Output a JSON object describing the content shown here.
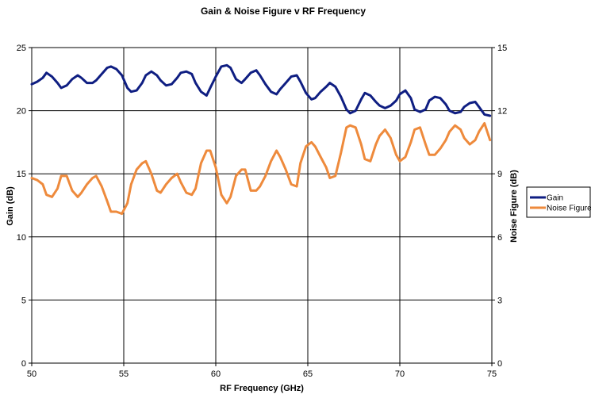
{
  "chart_data": {
    "type": "line",
    "title": "Gain & Noise Figure v RF Frequency",
    "xlabel": "RF Frequency (GHz)",
    "ylabel": "Gain (dB)",
    "y2label": "Noise Figure (dB)",
    "xlim": [
      50,
      75
    ],
    "ylim": [
      0,
      25
    ],
    "y2lim": [
      0,
      15
    ],
    "xticks": [
      "50",
      "55",
      "60",
      "65",
      "70",
      "75"
    ],
    "yticks": [
      "0",
      "5",
      "10",
      "15",
      "20",
      "25"
    ],
    "y2ticks": [
      "0",
      "3",
      "6",
      "9",
      "12",
      "15"
    ],
    "grid": true,
    "legend_position": "right",
    "series": [
      {
        "name": "Gain",
        "axis": "left",
        "color": "#0f1e82",
        "points": [
          [
            50,
            22.1
          ],
          [
            50.3,
            22.3
          ],
          [
            50.6,
            22.6
          ],
          [
            50.8,
            23.0
          ],
          [
            51.1,
            22.7
          ],
          [
            51.4,
            22.2
          ],
          [
            51.6,
            21.8
          ],
          [
            51.9,
            22.0
          ],
          [
            52.2,
            22.5
          ],
          [
            52.5,
            22.8
          ],
          [
            52.7,
            22.6
          ],
          [
            53.0,
            22.2
          ],
          [
            53.3,
            22.2
          ],
          [
            53.5,
            22.4
          ],
          [
            53.8,
            22.9
          ],
          [
            54.1,
            23.4
          ],
          [
            54.3,
            23.5
          ],
          [
            54.6,
            23.3
          ],
          [
            54.9,
            22.8
          ],
          [
            55.2,
            21.8
          ],
          [
            55.4,
            21.5
          ],
          [
            55.7,
            21.6
          ],
          [
            56.0,
            22.2
          ],
          [
            56.2,
            22.8
          ],
          [
            56.5,
            23.1
          ],
          [
            56.8,
            22.8
          ],
          [
            57.0,
            22.4
          ],
          [
            57.3,
            22.0
          ],
          [
            57.6,
            22.1
          ],
          [
            57.9,
            22.6
          ],
          [
            58.1,
            23.0
          ],
          [
            58.4,
            23.1
          ],
          [
            58.7,
            22.9
          ],
          [
            58.9,
            22.2
          ],
          [
            59.2,
            21.5
          ],
          [
            59.5,
            21.2
          ],
          [
            59.7,
            21.8
          ],
          [
            60.0,
            22.7
          ],
          [
            60.3,
            23.5
          ],
          [
            60.6,
            23.6
          ],
          [
            60.8,
            23.4
          ],
          [
            61.1,
            22.5
          ],
          [
            61.4,
            22.2
          ],
          [
            61.6,
            22.5
          ],
          [
            61.9,
            23.0
          ],
          [
            62.2,
            23.2
          ],
          [
            62.4,
            22.8
          ],
          [
            62.7,
            22.1
          ],
          [
            63.0,
            21.5
          ],
          [
            63.3,
            21.3
          ],
          [
            63.5,
            21.7
          ],
          [
            63.8,
            22.2
          ],
          [
            64.1,
            22.7
          ],
          [
            64.4,
            22.8
          ],
          [
            64.6,
            22.3
          ],
          [
            64.9,
            21.4
          ],
          [
            65.2,
            20.9
          ],
          [
            65.4,
            21.0
          ],
          [
            65.7,
            21.5
          ],
          [
            66.0,
            21.9
          ],
          [
            66.2,
            22.2
          ],
          [
            66.5,
            21.9
          ],
          [
            66.8,
            21.1
          ],
          [
            67.1,
            20.1
          ],
          [
            67.3,
            19.8
          ],
          [
            67.6,
            20.0
          ],
          [
            67.9,
            20.9
          ],
          [
            68.1,
            21.4
          ],
          [
            68.4,
            21.2
          ],
          [
            68.7,
            20.7
          ],
          [
            68.9,
            20.4
          ],
          [
            69.2,
            20.2
          ],
          [
            69.5,
            20.4
          ],
          [
            69.8,
            20.8
          ],
          [
            70.0,
            21.3
          ],
          [
            70.3,
            21.6
          ],
          [
            70.6,
            21.0
          ],
          [
            70.8,
            20.1
          ],
          [
            71.1,
            19.9
          ],
          [
            71.4,
            20.1
          ],
          [
            71.6,
            20.8
          ],
          [
            71.9,
            21.1
          ],
          [
            72.2,
            21.0
          ],
          [
            72.5,
            20.5
          ],
          [
            72.7,
            20.0
          ],
          [
            73.0,
            19.8
          ],
          [
            73.3,
            19.9
          ],
          [
            73.5,
            20.3
          ],
          [
            73.8,
            20.6
          ],
          [
            74.1,
            20.7
          ],
          [
            74.3,
            20.3
          ],
          [
            74.6,
            19.7
          ],
          [
            74.9,
            19.6
          ]
        ]
      },
      {
        "name": "Noise Figure",
        "axis": "right",
        "color": "#ee8a3c",
        "points": [
          [
            50,
            8.8
          ],
          [
            50.3,
            8.7
          ],
          [
            50.6,
            8.5
          ],
          [
            50.8,
            8.0
          ],
          [
            51.1,
            7.9
          ],
          [
            51.4,
            8.3
          ],
          [
            51.6,
            8.9
          ],
          [
            51.9,
            8.9
          ],
          [
            52.2,
            8.2
          ],
          [
            52.5,
            7.9
          ],
          [
            52.7,
            8.1
          ],
          [
            53.0,
            8.5
          ],
          [
            53.3,
            8.8
          ],
          [
            53.5,
            8.9
          ],
          [
            53.8,
            8.4
          ],
          [
            54.1,
            7.7
          ],
          [
            54.3,
            7.2
          ],
          [
            54.6,
            7.2
          ],
          [
            54.9,
            7.1
          ],
          [
            55.2,
            7.6
          ],
          [
            55.4,
            8.5
          ],
          [
            55.7,
            9.2
          ],
          [
            56.0,
            9.5
          ],
          [
            56.2,
            9.6
          ],
          [
            56.5,
            9.0
          ],
          [
            56.8,
            8.2
          ],
          [
            57.0,
            8.1
          ],
          [
            57.3,
            8.5
          ],
          [
            57.6,
            8.8
          ],
          [
            57.9,
            9.0
          ],
          [
            58.1,
            8.6
          ],
          [
            58.4,
            8.1
          ],
          [
            58.7,
            8.0
          ],
          [
            58.9,
            8.3
          ],
          [
            59.2,
            9.5
          ],
          [
            59.5,
            10.1
          ],
          [
            59.7,
            10.1
          ],
          [
            60.0,
            9.3
          ],
          [
            60.3,
            8.0
          ],
          [
            60.6,
            7.6
          ],
          [
            60.8,
            7.9
          ],
          [
            61.1,
            8.9
          ],
          [
            61.4,
            9.2
          ],
          [
            61.6,
            9.2
          ],
          [
            61.9,
            8.2
          ],
          [
            62.2,
            8.2
          ],
          [
            62.4,
            8.4
          ],
          [
            62.7,
            8.9
          ],
          [
            63.0,
            9.6
          ],
          [
            63.3,
            10.1
          ],
          [
            63.5,
            9.8
          ],
          [
            63.8,
            9.2
          ],
          [
            64.1,
            8.5
          ],
          [
            64.4,
            8.4
          ],
          [
            64.6,
            9.5
          ],
          [
            64.9,
            10.3
          ],
          [
            65.2,
            10.5
          ],
          [
            65.4,
            10.3
          ],
          [
            65.7,
            9.8
          ],
          [
            66.0,
            9.3
          ],
          [
            66.2,
            8.8
          ],
          [
            66.5,
            8.9
          ],
          [
            66.8,
            10.0
          ],
          [
            67.1,
            11.2
          ],
          [
            67.3,
            11.3
          ],
          [
            67.6,
            11.2
          ],
          [
            67.9,
            10.4
          ],
          [
            68.1,
            9.7
          ],
          [
            68.4,
            9.6
          ],
          [
            68.7,
            10.4
          ],
          [
            68.9,
            10.8
          ],
          [
            69.2,
            11.1
          ],
          [
            69.5,
            10.7
          ],
          [
            69.8,
            9.9
          ],
          [
            70.0,
            9.6
          ],
          [
            70.3,
            9.8
          ],
          [
            70.6,
            10.5
          ],
          [
            70.8,
            11.1
          ],
          [
            71.1,
            11.2
          ],
          [
            71.4,
            10.4
          ],
          [
            71.6,
            9.9
          ],
          [
            71.9,
            9.9
          ],
          [
            72.2,
            10.2
          ],
          [
            72.5,
            10.6
          ],
          [
            72.7,
            11.0
          ],
          [
            73.0,
            11.3
          ],
          [
            73.3,
            11.1
          ],
          [
            73.5,
            10.7
          ],
          [
            73.8,
            10.4
          ],
          [
            74.1,
            10.6
          ],
          [
            74.3,
            11.0
          ],
          [
            74.6,
            11.4
          ],
          [
            74.9,
            10.6
          ]
        ]
      }
    ]
  }
}
